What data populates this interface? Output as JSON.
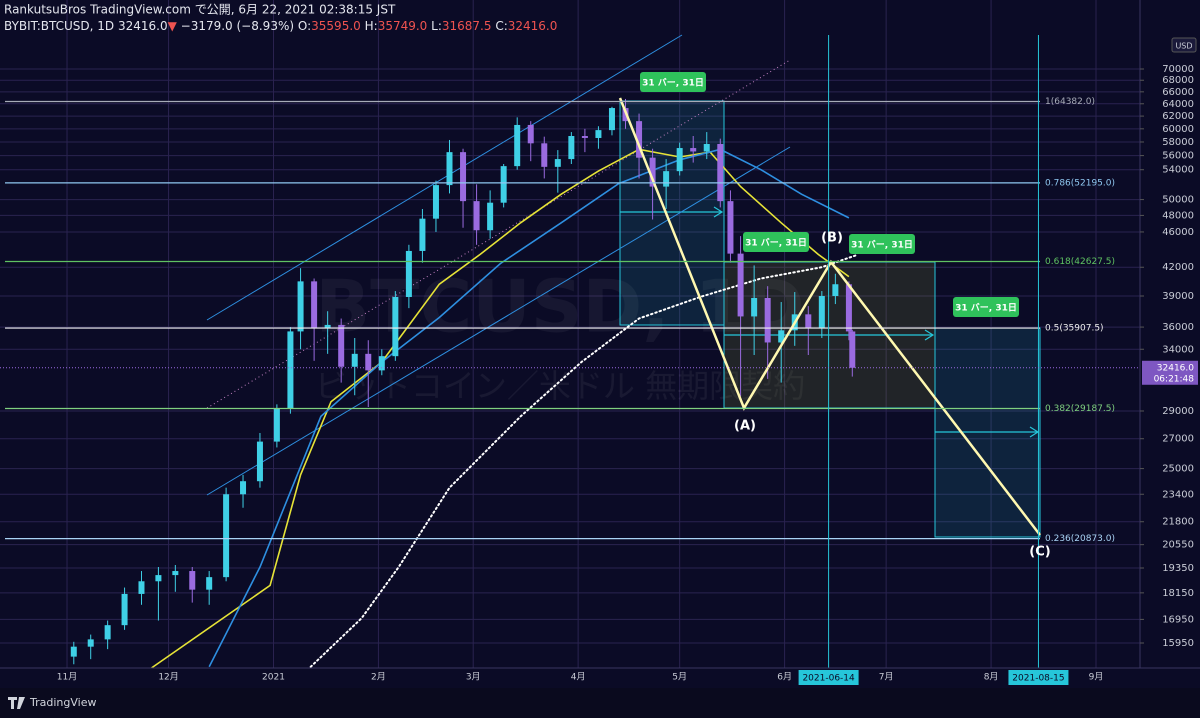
{
  "chart_data": {
    "type": "candlestick",
    "title": "RankutsuBros TradingView.com で公開, 6月 22, 2021 02:38:15 JST",
    "legend_header": {
      "symbol": "BYBIT:BTCUSD, 1D",
      "last": "32416.0",
      "arrow": "▼",
      "change": "−3179.0 (−8.93%)",
      "ohlc": [
        {
          "key": "O:",
          "value": "35595.0"
        },
        {
          "key": "H:",
          "value": "35749.0"
        },
        {
          "key": "L:",
          "value": "31687.5"
        },
        {
          "key": "C:",
          "value": "32416.0"
        }
      ]
    },
    "watermark": [
      "BTCUSD, 1D",
      "ビットコイン／米ドル 無期限契約"
    ],
    "currency": "USD",
    "brand": "TradingView",
    "log_scale": true,
    "grid": true,
    "up_color": "#3fd0e6",
    "down_color": "#9a6be0",
    "xlim": [
      -19.8,
      317
    ],
    "xticks": [
      {
        "value": 0,
        "label": "11月"
      },
      {
        "value": 30,
        "label": "12月"
      },
      {
        "value": 61,
        "label": "2021"
      },
      {
        "value": 92,
        "label": "2月"
      },
      {
        "value": 120,
        "label": "3月"
      },
      {
        "value": 151,
        "label": "4月"
      },
      {
        "value": 181,
        "label": "5月"
      },
      {
        "value": 212,
        "label": "6月"
      },
      {
        "value": 242,
        "label": "7月"
      },
      {
        "value": 273,
        "label": "8月"
      },
      {
        "value": 304,
        "label": "9月"
      }
    ],
    "ylim": [
      14955,
      75430
    ],
    "yticks": [
      70000,
      68000,
      66000,
      64000,
      62000,
      60000,
      58000,
      56000,
      54000,
      50000,
      48000,
      46000,
      42000,
      39000,
      36000,
      34000,
      29000,
      27000,
      25000,
      23400,
      21800,
      20550,
      19350,
      18150,
      16950,
      15950
    ],
    "x": [
      2,
      7,
      12,
      17,
      22,
      27,
      32,
      37,
      42,
      47,
      52,
      57,
      62,
      66,
      69,
      73,
      77,
      81,
      85,
      89,
      93,
      97,
      101,
      105,
      109,
      113,
      117,
      121,
      125,
      129,
      133,
      137,
      141,
      145,
      149,
      153,
      157,
      161,
      165,
      169,
      173,
      177,
      181,
      185,
      189,
      193,
      196,
      199,
      203,
      207,
      211,
      215,
      219,
      223,
      227,
      231,
      232
    ],
    "open": [
      15400,
      15800,
      16100,
      16700,
      18100,
      18700,
      19000,
      19200,
      18300,
      18900,
      23400,
      24200,
      26800,
      29200,
      35600,
      40500,
      35900,
      36200,
      32500,
      33600,
      32200,
      33400,
      38900,
      43800,
      47600,
      51900,
      56500,
      49800,
      46200,
      49600,
      54500,
      60600,
      57800,
      54400,
      55500,
      58900,
      58600,
      59800,
      63300,
      61200,
      55700,
      51700,
      53800,
      57100,
      56600,
      57700,
      49800,
      43500,
      37000,
      38800,
      34600,
      35700,
      37200,
      35900,
      39000,
      40200,
      35595
    ],
    "high": [
      16000,
      16300,
      16900,
      18400,
      19200,
      19400,
      19500,
      19400,
      19200,
      23800,
      24600,
      27400,
      29500,
      36000,
      41900,
      40800,
      37500,
      36800,
      35000,
      34800,
      34000,
      39500,
      44500,
      48800,
      52500,
      58300,
      57000,
      52000,
      51200,
      54800,
      61800,
      61200,
      58800,
      56800,
      59500,
      60000,
      60400,
      63500,
      64800,
      62400,
      57000,
      55500,
      57900,
      58900,
      59500,
      58500,
      51200,
      45500,
      42200,
      40000,
      38400,
      39400,
      38000,
      39500,
      41300,
      40500,
      35749
    ],
    "low": [
      15100,
      15300,
      15700,
      16500,
      17600,
      16900,
      18200,
      17700,
      17600,
      18700,
      22600,
      23800,
      26400,
      28800,
      34000,
      33000,
      33600,
      31200,
      30200,
      29300,
      31800,
      33000,
      37800,
      42500,
      46000,
      50800,
      46500,
      44500,
      45200,
      49000,
      54000,
      55200,
      52800,
      50900,
      54800,
      56500,
      57000,
      59000,
      60000,
      52800,
      47500,
      48800,
      53200,
      55000,
      55500,
      49000,
      42500,
      30100,
      33500,
      31500,
      31200,
      34300,
      33500,
      35000,
      38200,
      34800,
      31687.5
    ],
    "close": [
      15800,
      16100,
      16700,
      18100,
      18700,
      19000,
      19200,
      18300,
      18900,
      23400,
      24200,
      26800,
      29200,
      35600,
      40500,
      35900,
      36200,
      32500,
      33600,
      32200,
      33400,
      38900,
      43800,
      47600,
      51900,
      56500,
      49800,
      46200,
      49600,
      54500,
      60600,
      57800,
      54400,
      55500,
      58900,
      58600,
      59800,
      63300,
      61200,
      55700,
      51700,
      53800,
      57100,
      56600,
      57700,
      49800,
      43500,
      37000,
      38800,
      34600,
      35700,
      37200,
      35900,
      39000,
      40200,
      35600,
      32416
    ],
    "moving_averages": [
      {
        "color": "#e6e337",
        "dotted": false,
        "x": [
          25,
          60,
          69,
          78,
          93,
          110,
          122,
          134,
          146,
          157,
          169,
          181,
          190,
          199,
          211,
          222,
          231
        ],
        "values": [
          14960,
          18500,
          24600,
          29700,
          32900,
          40200,
          43400,
          47100,
          50700,
          53800,
          56900,
          55800,
          56500,
          51700,
          47100,
          43400,
          41000
        ]
      },
      {
        "color": "#2e8fe0",
        "dotted": false,
        "x": [
          42,
          57,
          75,
          93,
          110,
          128,
          146,
          163,
          181,
          193,
          205,
          217,
          231
        ],
        "values": [
          15000,
          19400,
          28600,
          32900,
          36900,
          42400,
          47100,
          52100,
          55400,
          56900,
          54000,
          50700,
          47700
        ]
      },
      {
        "color": "#ffffff",
        "dotted": true,
        "x": [
          72,
          87,
          98,
          113,
          134,
          152,
          169,
          187,
          205,
          223,
          233
        ],
        "values": [
          15000,
          17000,
          19400,
          23800,
          28600,
          32900,
          36800,
          38900,
          40800,
          42000,
          43300
        ]
      }
    ],
    "fib_levels": [
      {
        "value": 64382,
        "label": "1(64382.0)",
        "color": "#a7abb8"
      },
      {
        "value": 52195,
        "label": "0.786(52195.0)",
        "color": "#8fc7f0"
      },
      {
        "value": 42627.5,
        "label": "0.618(42627.5)",
        "color": "#5fc262"
      },
      {
        "value": 35907.5,
        "label": "0.5(35907.5)",
        "color": "#f0f0f0"
      },
      {
        "value": 29187.5,
        "label": "0.382(29187.5)",
        "color": "#7fd07f"
      },
      {
        "value": 20873,
        "label": "0.236(20873.0)",
        "color": "#a9d3f5"
      }
    ],
    "date_markers": [
      {
        "value": 225,
        "label": "2021-06-14"
      },
      {
        "value": 287,
        "label": "2021-08-15"
      }
    ],
    "last_price": {
      "value": 32416,
      "label": "32416.0"
    },
    "countdown": "06:21:48",
    "wave_labels": [
      "(A)",
      "(B)",
      "(C)"
    ],
    "range_labels": [
      "31 バー, 31日",
      "31 バー, 31日",
      "31 バー, 31日",
      "31 バー, 31日"
    ]
  }
}
